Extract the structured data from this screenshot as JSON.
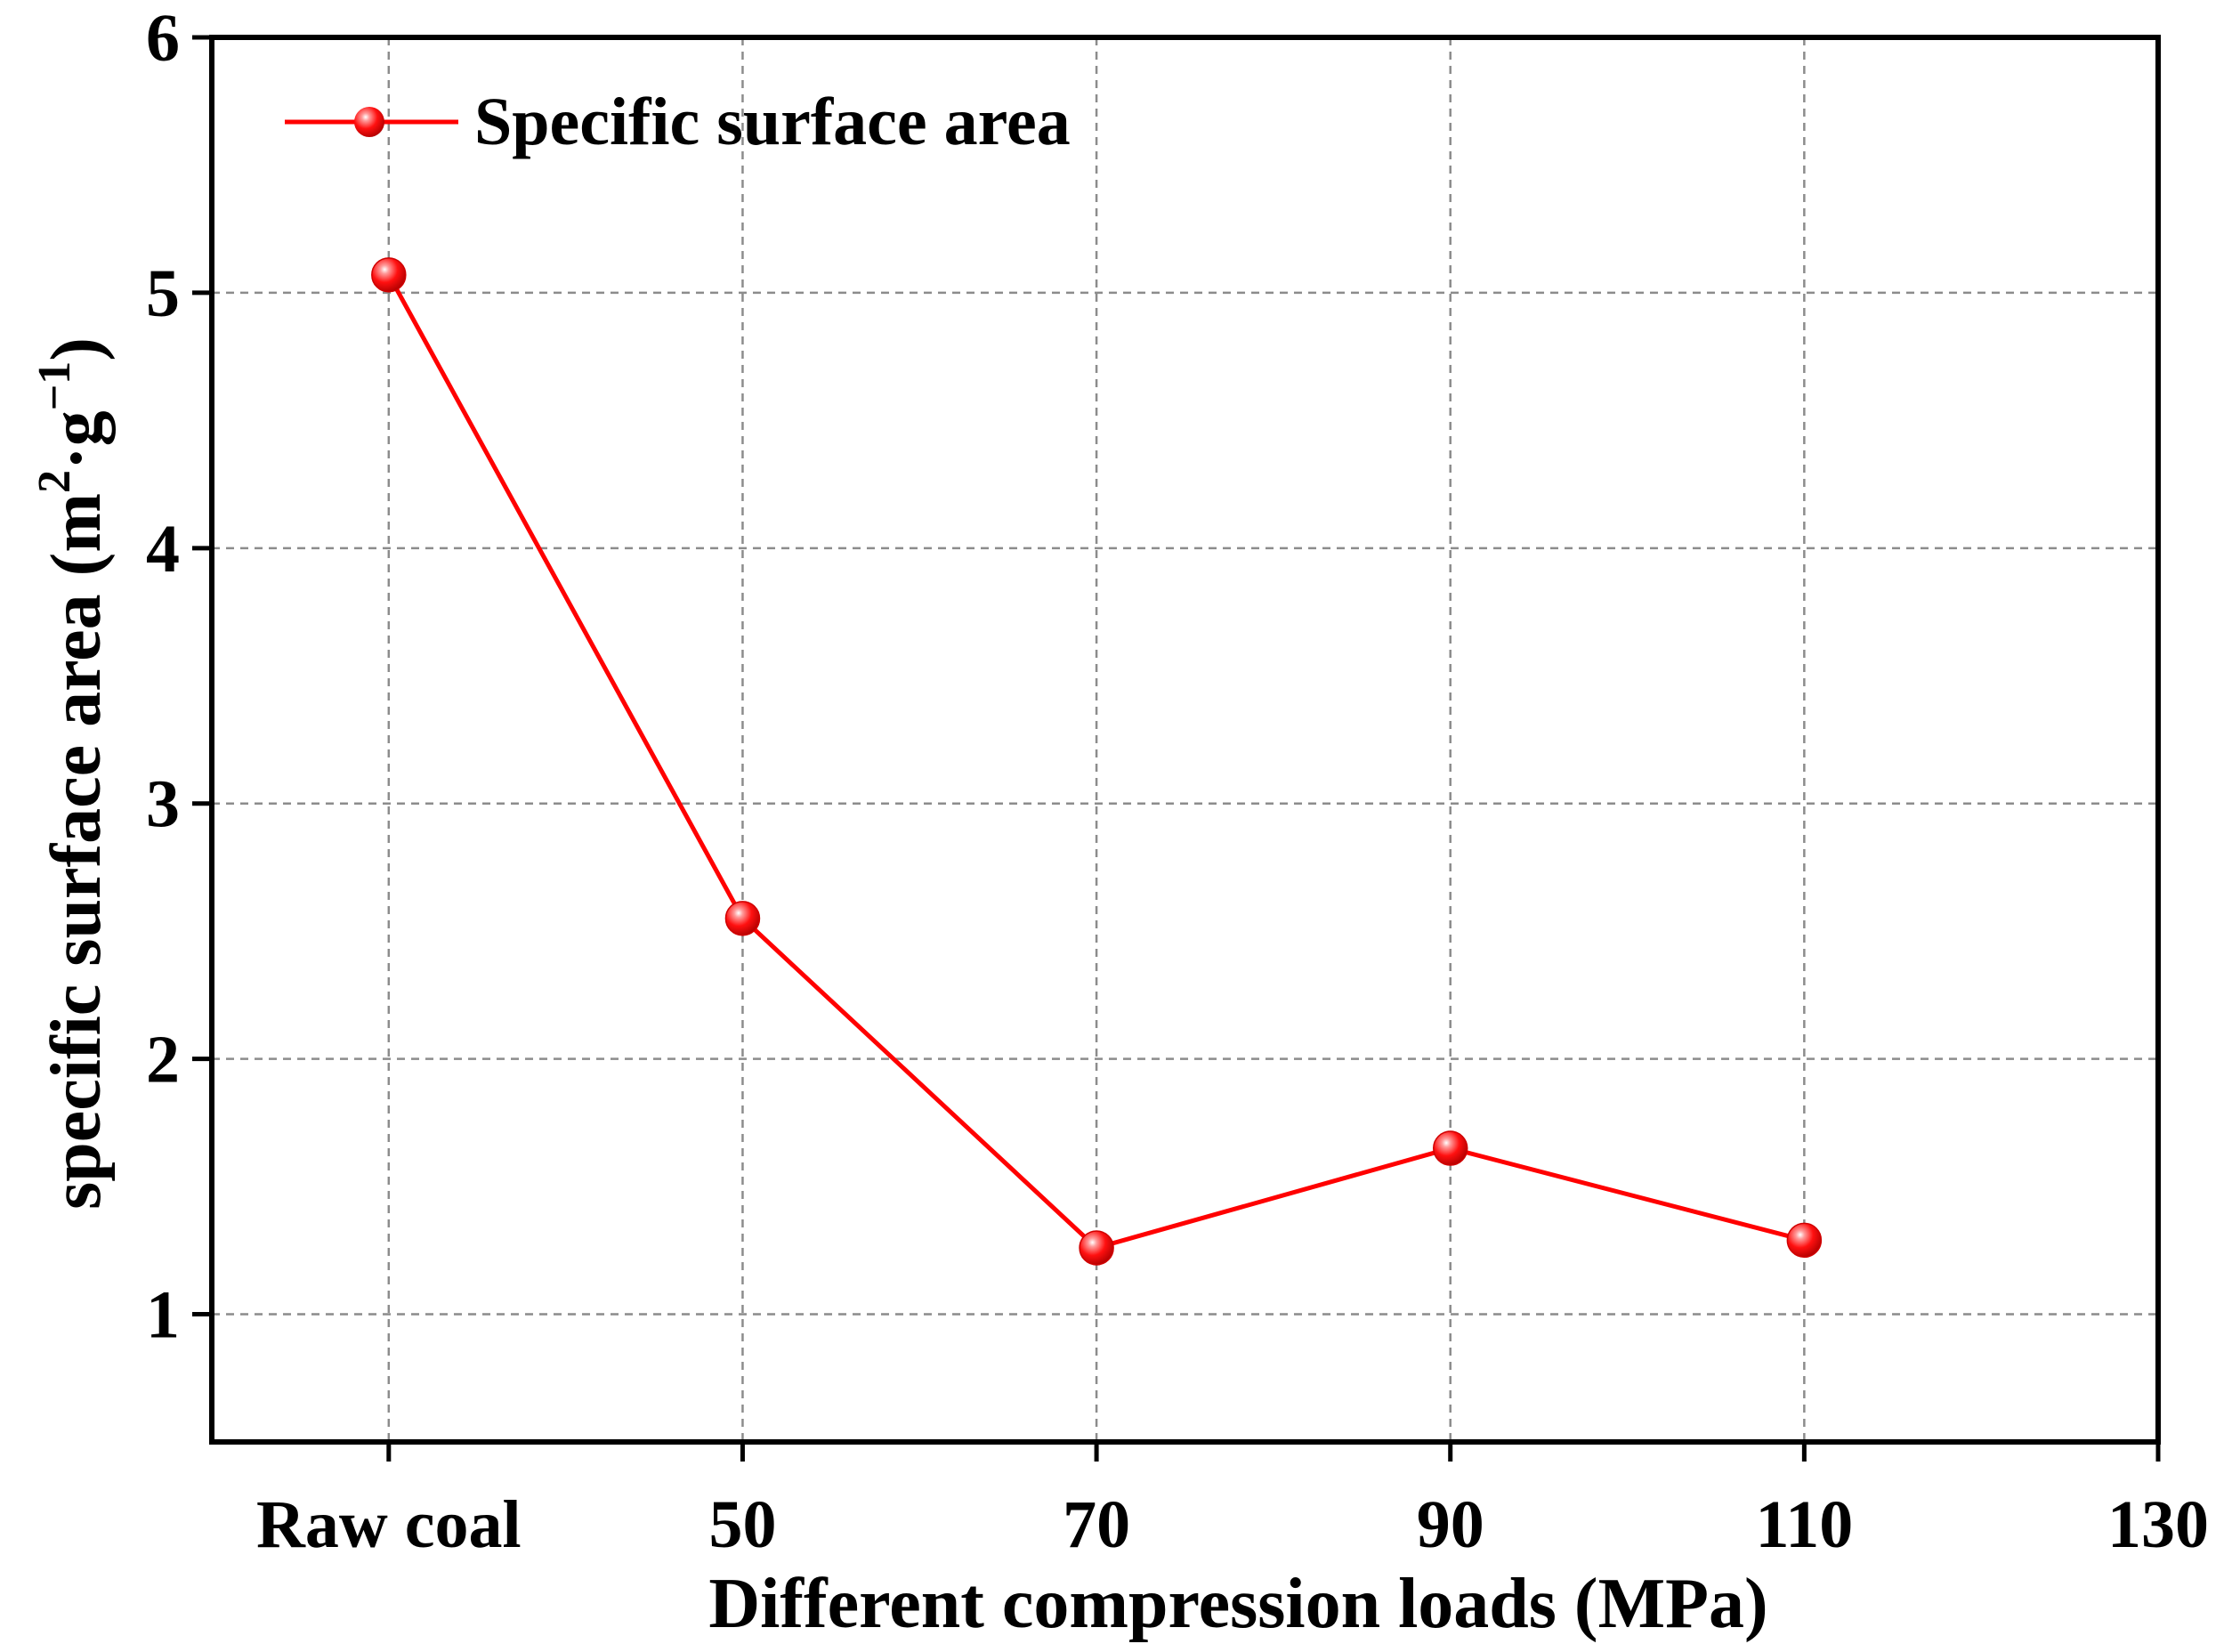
{
  "chart_data": {
    "type": "line",
    "title": "",
    "xlabel": "Different compression loads (MPa)",
    "ylabel": {
      "main": "specific surface area (m",
      "sup1": "2",
      "mid": "·g",
      "sup2": "−1",
      "end": ")"
    },
    "categories": [
      "Raw coal",
      "50",
      "70",
      "90",
      "110",
      "130"
    ],
    "x": [
      30,
      50,
      70,
      90,
      110
    ],
    "xlim": [
      20,
      130
    ],
    "xticks": [
      {
        "value": 30,
        "label": "Raw coal"
      },
      {
        "value": 50,
        "label": "50"
      },
      {
        "value": 70,
        "label": "70"
      },
      {
        "value": 90,
        "label": "90"
      },
      {
        "value": 110,
        "label": "110"
      },
      {
        "value": 130,
        "label": "130"
      }
    ],
    "ylim": [
      0.5,
      6
    ],
    "yticks": [
      {
        "value": 1,
        "label": "1"
      },
      {
        "value": 2,
        "label": "2"
      },
      {
        "value": 3,
        "label": "3"
      },
      {
        "value": 4,
        "label": "4"
      },
      {
        "value": 5,
        "label": "5"
      },
      {
        "value": 6,
        "label": "6"
      }
    ],
    "grid": true,
    "legend_position": "top-left",
    "series": [
      {
        "name": "Specific surface area",
        "color": "#ff0000",
        "values": [
          5.07,
          2.55,
          1.26,
          1.65,
          1.29
        ]
      }
    ]
  }
}
